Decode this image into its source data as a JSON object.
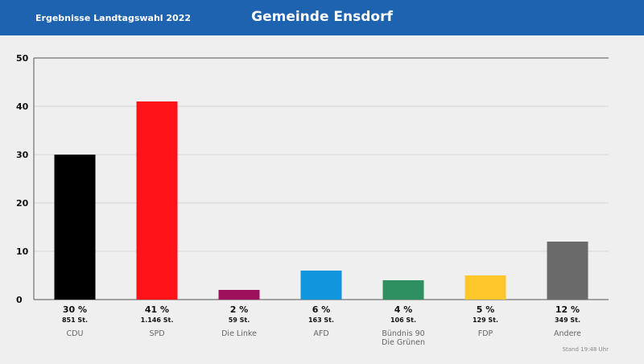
{
  "header": {
    "subtitle": "Ergebnisse Landtagswahl 2022",
    "title": "Gemeinde Ensdorf"
  },
  "footer": {
    "stand": "Stand 19:48 Uhr"
  },
  "colors": {
    "header_bg": "#1e63b0",
    "grid": "#d6d6d6",
    "axis": "#555555"
  },
  "chart_data": {
    "type": "bar",
    "title": "Gemeinde Ensdorf",
    "xlabel": "",
    "ylabel": "",
    "ylim": [
      0,
      50
    ],
    "yticks": [
      0,
      10,
      20,
      30,
      40,
      50
    ],
    "grid": true,
    "categories": [
      "CDU",
      "SPD",
      "Die Linke",
      "AFD",
      "Bündnis 90 Die Grünen",
      "FDP",
      "Andere"
    ],
    "category_lines": [
      [
        "CDU"
      ],
      [
        "SPD"
      ],
      [
        "Die Linke"
      ],
      [
        "AFD"
      ],
      [
        "Bündnis 90",
        "Die Grünen"
      ],
      [
        "FDP"
      ],
      [
        "Andere"
      ]
    ],
    "values": [
      30,
      41,
      2,
      6,
      4,
      5,
      12
    ],
    "percent_labels": [
      "30 %",
      "41 %",
      "2 %",
      "6 %",
      "4 %",
      "5 %",
      "12 %"
    ],
    "vote_labels": [
      "851 St.",
      "1.146 St.",
      "59 St.",
      "163 St.",
      "106 St.",
      "129 St.",
      "349 St."
    ],
    "colors": [
      "#000000",
      "#ff1218",
      "#9e0f5c",
      "#1196de",
      "#2e9060",
      "#ffc72a",
      "#6a6a6a"
    ]
  }
}
